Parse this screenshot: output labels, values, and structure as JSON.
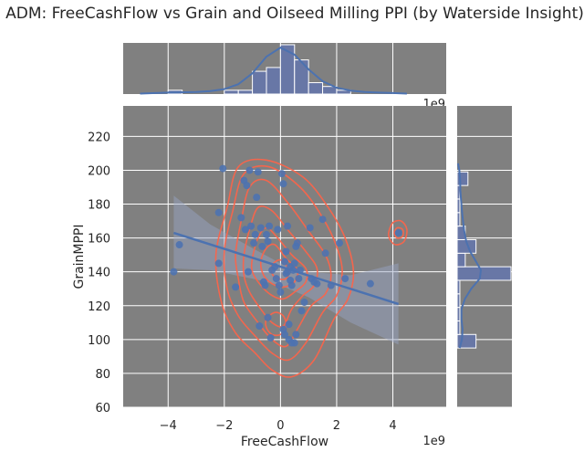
{
  "title": "ADM: FreeCashFlow vs Grain and Oilseed Milling PPI (by Waterside Insight)",
  "chart_data": {
    "type": "scatter",
    "xlabel": "FreeCashFlow",
    "ylabel": "GrainMPPI",
    "x_offset_label": "1e9",
    "top_offset_label": "1e9",
    "xlim": [
      -5.6,
      5.9
    ],
    "ylim": [
      60,
      238
    ],
    "x_ticks": [
      -4,
      -2,
      0,
      2,
      4
    ],
    "x_tick_labels": [
      "−4",
      "−2",
      "0",
      "2",
      "4"
    ],
    "y_ticks": [
      60,
      80,
      100,
      120,
      140,
      160,
      180,
      200,
      220
    ],
    "y_tick_labels": [
      "60",
      "80",
      "100",
      "120",
      "140",
      "160",
      "180",
      "200",
      "220"
    ],
    "grid": true,
    "background_color": "#808080",
    "point_color": "#4c72b0",
    "kde_color": "#ff6347",
    "points": [
      [
        -3.8,
        140
      ],
      [
        -3.6,
        156
      ],
      [
        -2.2,
        175
      ],
      [
        -2.2,
        145
      ],
      [
        -2.05,
        201
      ],
      [
        -1.6,
        131
      ],
      [
        -1.4,
        172
      ],
      [
        -1.3,
        194
      ],
      [
        -1.25,
        165
      ],
      [
        -1.2,
        191
      ],
      [
        -1.15,
        140
      ],
      [
        -1.1,
        200
      ],
      [
        -1.05,
        167
      ],
      [
        -0.95,
        157
      ],
      [
        -0.9,
        162
      ],
      [
        -0.85,
        184
      ],
      [
        -0.8,
        199
      ],
      [
        -0.75,
        108
      ],
      [
        -0.7,
        166
      ],
      [
        -0.65,
        155
      ],
      [
        -0.6,
        134
      ],
      [
        -0.55,
        132
      ],
      [
        -0.5,
        162
      ],
      [
        -0.45,
        158
      ],
      [
        -0.45,
        113
      ],
      [
        -0.4,
        167
      ],
      [
        -0.35,
        101
      ],
      [
        -0.3,
        141
      ],
      [
        -0.2,
        143
      ],
      [
        -0.15,
        136
      ],
      [
        -0.1,
        165
      ],
      [
        -0.05,
        132
      ],
      [
        0.0,
        128
      ],
      [
        0.05,
        198
      ],
      [
        0.1,
        192
      ],
      [
        0.1,
        106
      ],
      [
        0.15,
        103
      ],
      [
        0.15,
        146
      ],
      [
        0.2,
        152
      ],
      [
        0.2,
        139
      ],
      [
        0.25,
        140
      ],
      [
        0.25,
        167
      ],
      [
        0.3,
        109
      ],
      [
        0.3,
        100
      ],
      [
        0.35,
        143
      ],
      [
        0.35,
        135
      ],
      [
        0.4,
        132
      ],
      [
        0.4,
        98
      ],
      [
        0.45,
        141
      ],
      [
        0.5,
        145
      ],
      [
        0.5,
        98
      ],
      [
        0.55,
        103
      ],
      [
        0.55,
        155
      ],
      [
        0.6,
        157
      ],
      [
        0.65,
        136
      ],
      [
        0.7,
        141
      ],
      [
        0.75,
        117
      ],
      [
        0.85,
        122
      ],
      [
        1.05,
        166
      ],
      [
        1.1,
        136
      ],
      [
        1.2,
        134
      ],
      [
        1.3,
        133
      ],
      [
        1.5,
        171
      ],
      [
        1.6,
        151
      ],
      [
        1.8,
        132
      ],
      [
        2.1,
        157
      ],
      [
        2.3,
        136
      ],
      [
        3.2,
        133
      ],
      [
        4.2,
        163
      ]
    ],
    "regression": {
      "x": [
        -3.8,
        4.2
      ],
      "y": [
        163,
        121
      ]
    },
    "ci_band_upper": [
      [
        -3.8,
        185
      ],
      [
        -2.5,
        168
      ],
      [
        -1.0,
        154
      ],
      [
        0.0,
        145
      ],
      [
        1.0,
        140
      ],
      [
        2.5,
        138
      ],
      [
        4.2,
        145
      ]
    ],
    "ci_band_lower": [
      [
        4.2,
        97
      ],
      [
        2.5,
        110
      ],
      [
        1.0,
        125
      ],
      [
        0.0,
        132
      ],
      [
        -1.0,
        136
      ],
      [
        -2.5,
        141
      ],
      [
        -3.8,
        142
      ]
    ],
    "kde_contours": [
      {
        "points": [
          [
            -2.3,
            150
          ],
          [
            -1.9,
            178
          ],
          [
            -1.5,
            202
          ],
          [
            -0.5,
            206
          ],
          [
            0.8,
            196
          ],
          [
            1.7,
            178
          ],
          [
            2.3,
            160
          ],
          [
            2.6,
            140
          ],
          [
            2.4,
            124
          ],
          [
            1.9,
            112
          ],
          [
            1.2,
            88
          ],
          [
            0.4,
            78
          ],
          [
            -0.3,
            82
          ],
          [
            -0.9,
            92
          ],
          [
            -1.6,
            104
          ],
          [
            -2.1,
            122
          ]
        ]
      },
      {
        "points": [
          [
            -2.0,
            152
          ],
          [
            -1.7,
            176
          ],
          [
            -1.3,
            198
          ],
          [
            -0.4,
            202
          ],
          [
            0.7,
            190
          ],
          [
            1.5,
            172
          ],
          [
            2.0,
            155
          ],
          [
            2.2,
            140
          ],
          [
            2.0,
            126
          ],
          [
            1.5,
            116
          ],
          [
            0.9,
            98
          ],
          [
            0.3,
            88
          ],
          [
            -0.3,
            92
          ],
          [
            -0.9,
            102
          ],
          [
            -1.5,
            114
          ],
          [
            -1.9,
            130
          ]
        ]
      },
      {
        "points": [
          [
            -1.6,
            150
          ],
          [
            -1.4,
            170
          ],
          [
            -1.1,
            190
          ],
          [
            -0.5,
            194
          ],
          [
            0.3,
            180
          ],
          [
            1.0,
            164
          ],
          [
            1.6,
            150
          ],
          [
            1.8,
            138
          ],
          [
            1.6,
            127
          ],
          [
            1.1,
            120
          ],
          [
            0.6,
            106
          ],
          [
            0.2,
            96
          ],
          [
            -0.3,
            100
          ],
          [
            -0.8,
            110
          ],
          [
            -1.3,
            122
          ],
          [
            -1.5,
            136
          ]
        ]
      },
      {
        "points": [
          [
            -1.3,
            150
          ],
          [
            -1.1,
            165
          ],
          [
            -0.8,
            178
          ],
          [
            -0.3,
            176
          ],
          [
            0.3,
            164
          ],
          [
            0.9,
            152
          ],
          [
            1.3,
            142
          ],
          [
            1.2,
            132
          ],
          [
            0.8,
            126
          ],
          [
            0.4,
            118
          ],
          [
            0.1,
            108
          ],
          [
            -0.3,
            110
          ],
          [
            -0.7,
            118
          ],
          [
            -1.1,
            128
          ],
          [
            -1.3,
            138
          ]
        ]
      },
      {
        "points": [
          [
            -1.0,
            148
          ],
          [
            -0.8,
            160
          ],
          [
            -0.5,
            166
          ],
          [
            -0.1,
            160
          ],
          [
            0.4,
            150
          ],
          [
            0.9,
            142
          ],
          [
            0.9,
            134
          ],
          [
            0.5,
            128
          ],
          [
            0.1,
            124
          ],
          [
            -0.3,
            126
          ],
          [
            -0.7,
            132
          ],
          [
            -1.0,
            140
          ]
        ]
      },
      {
        "points": [
          [
            -0.7,
            146
          ],
          [
            -0.5,
            154
          ],
          [
            -0.2,
            156
          ],
          [
            0.2,
            148
          ],
          [
            0.6,
            141
          ],
          [
            0.5,
            134
          ],
          [
            0.1,
            131
          ],
          [
            -0.3,
            133
          ],
          [
            -0.6,
            138
          ]
        ]
      },
      {
        "points": [
          [
            -0.3,
            144
          ],
          [
            0.0,
            147
          ],
          [
            0.3,
            141
          ],
          [
            0.2,
            136
          ],
          [
            -0.1,
            136
          ],
          [
            -0.3,
            139
          ]
        ]
      },
      {
        "points": [
          [
            -0.5,
            112
          ],
          [
            -0.2,
            116
          ],
          [
            0.1,
            114
          ],
          [
            0.2,
            108
          ],
          [
            0.0,
            103
          ],
          [
            -0.3,
            103
          ],
          [
            -0.5,
            107
          ]
        ]
      },
      {
        "points": [
          [
            3.85,
            163
          ],
          [
            4.0,
            169
          ],
          [
            4.3,
            170
          ],
          [
            4.5,
            165
          ],
          [
            4.4,
            158
          ],
          [
            4.1,
            156
          ],
          [
            3.9,
            159
          ]
        ]
      },
      {
        "points": [
          [
            4.05,
            163
          ],
          [
            4.15,
            166
          ],
          [
            4.35,
            165
          ],
          [
            4.35,
            161
          ],
          [
            4.15,
            160
          ]
        ]
      }
    ],
    "top_histogram": {
      "bin_edges": [
        -5.0,
        -4.5,
        -4.0,
        -3.5,
        -3.0,
        -2.5,
        -2.0,
        -1.5,
        -1.0,
        -0.5,
        0.0,
        0.5,
        1.0,
        1.5,
        2.0,
        2.5,
        3.0,
        3.5,
        4.0,
        4.5
      ],
      "counts": [
        0,
        0,
        1,
        0,
        0,
        0,
        1,
        1,
        6,
        7,
        13,
        9,
        3,
        2,
        1,
        0,
        0,
        0,
        0
      ],
      "kde": [
        [
          -5.0,
          0.1
        ],
        [
          -4.0,
          0.3
        ],
        [
          -3.0,
          0.4
        ],
        [
          -2.5,
          0.6
        ],
        [
          -2.0,
          1.0
        ],
        [
          -1.5,
          2.0
        ],
        [
          -1.0,
          4.2
        ],
        [
          -0.5,
          7.6
        ],
        [
          0.0,
          9.4
        ],
        [
          0.5,
          8.0
        ],
        [
          1.0,
          5.0
        ],
        [
          1.5,
          2.6
        ],
        [
          2.0,
          1.3
        ],
        [
          2.5,
          0.7
        ],
        [
          3.0,
          0.4
        ],
        [
          3.5,
          0.3
        ],
        [
          4.0,
          0.2
        ],
        [
          4.5,
          0.1
        ]
      ]
    },
    "right_histogram": {
      "bin_edges": [
        95,
        103,
        111,
        119,
        127,
        135,
        143,
        151,
        159,
        167,
        175,
        183,
        191,
        199,
        203
      ],
      "counts": [
        7,
        1,
        1,
        1,
        1,
        20,
        3,
        7,
        3,
        1,
        1,
        1,
        4,
        0
      ],
      "kde": [
        [
          95,
          1.2
        ],
        [
          100,
          2.2
        ],
        [
          106,
          2.5
        ],
        [
          112,
          2.0
        ],
        [
          118,
          2.0
        ],
        [
          124,
          3.6
        ],
        [
          130,
          6.5
        ],
        [
          136,
          10.5
        ],
        [
          141,
          11.0
        ],
        [
          146,
          8.8
        ],
        [
          152,
          6.0
        ],
        [
          158,
          4.2
        ],
        [
          164,
          3.3
        ],
        [
          170,
          2.7
        ],
        [
          176,
          2.2
        ],
        [
          182,
          1.8
        ],
        [
          188,
          1.5
        ],
        [
          194,
          1.4
        ],
        [
          200,
          1.0
        ],
        [
          204,
          0.4
        ]
      ]
    }
  }
}
